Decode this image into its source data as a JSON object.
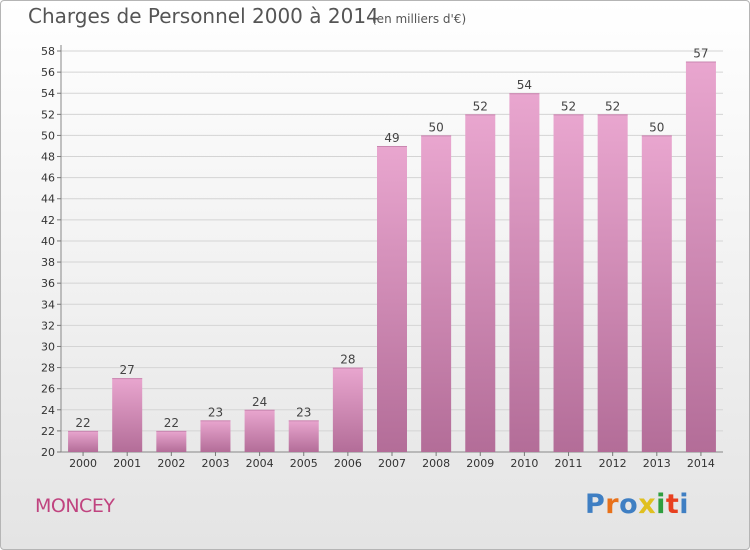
{
  "header": {
    "title": "Charges de Personnel 2000 à 2014",
    "subtitle": "(en milliers d'€)"
  },
  "footer": {
    "place": "MONCEY",
    "brand": "Proxiti"
  },
  "colors": {
    "bar_top": "#e9a6cf",
    "bar_bottom": "#b36d98",
    "place": "#c0437f",
    "brand_letters": [
      "#3f7fc3",
      "#e8711a",
      "#3f7fc3",
      "#e0c020",
      "#2f9e3f",
      "#e84020",
      "#3f7fc3"
    ]
  },
  "chart_data": {
    "type": "bar",
    "categories": [
      "2000",
      "2001",
      "2002",
      "2003",
      "2004",
      "2005",
      "2006",
      "2007",
      "2008",
      "2009",
      "2010",
      "2011",
      "2012",
      "2013",
      "2014"
    ],
    "values": [
      22,
      27,
      22,
      23,
      24,
      23,
      28,
      49,
      50,
      52,
      54,
      52,
      52,
      50,
      57
    ],
    "ylim": [
      20,
      58
    ],
    "yticks": [
      20,
      22,
      24,
      26,
      28,
      30,
      32,
      34,
      36,
      38,
      40,
      42,
      44,
      46,
      48,
      50,
      52,
      54,
      56,
      58
    ],
    "grid": true,
    "xlabel": "",
    "ylabel": ""
  }
}
